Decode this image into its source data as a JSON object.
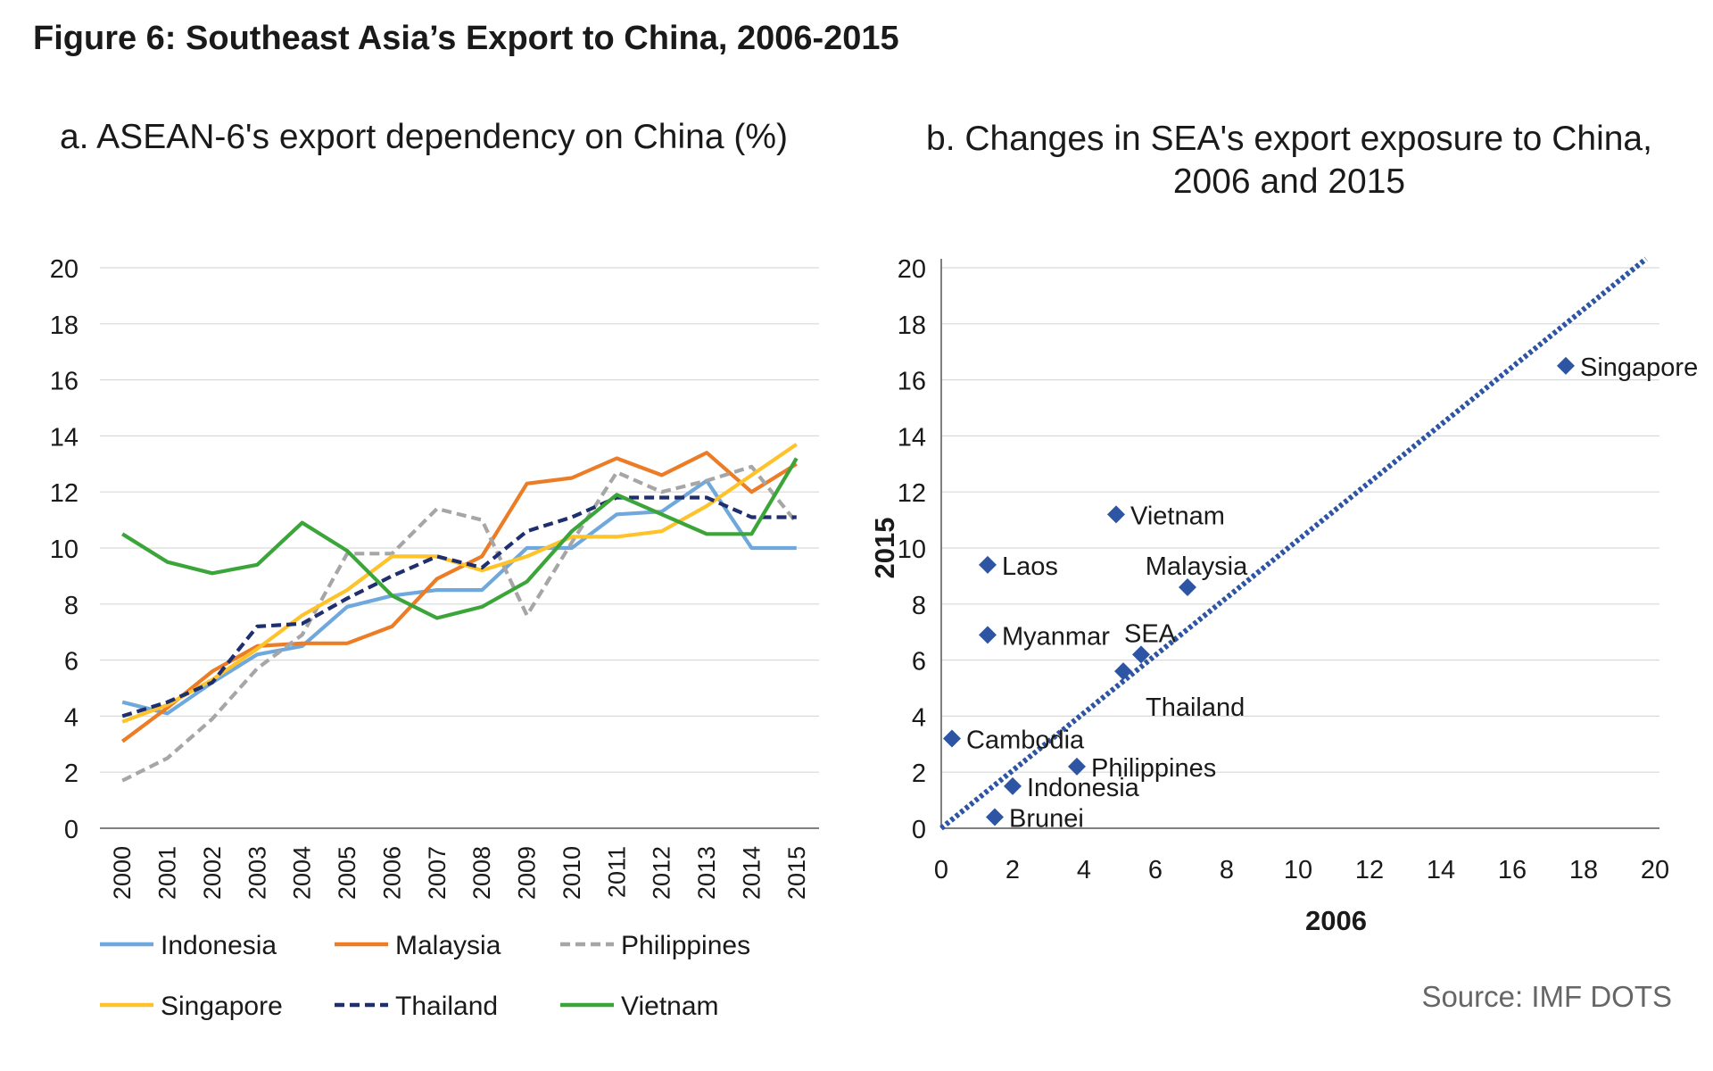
{
  "figure_title": "Figure 6: Southeast Asia’s Export to China, 2006-2015",
  "source": "Source: IMF DOTS",
  "colors": {
    "Indonesia": "#6fa8dc",
    "Malaysia": "#ec7c25",
    "Philippines": "#a6a6a6",
    "Singapore": "#fec22b",
    "Thailand": "#1f2f6e",
    "Vietnam": "#3ba53a",
    "scatter_marker": "#2e55a3",
    "diagonal_line": "#2e55a3",
    "gridline": "#d9d9d9"
  },
  "chart_data": [
    {
      "type": "line",
      "title": "a. ASEAN-6's export dependency on China (%)",
      "xlabel": "",
      "ylabel": "",
      "ylim": [
        0,
        20
      ],
      "yticks": [
        0,
        2,
        4,
        6,
        8,
        10,
        12,
        14,
        16,
        18,
        20
      ],
      "grid": true,
      "legend_position": "bottom",
      "x": [
        2000,
        2001,
        2002,
        2003,
        2004,
        2005,
        2006,
        2007,
        2008,
        2009,
        2010,
        2011,
        2012,
        2013,
        2014,
        2015
      ],
      "series": [
        {
          "name": "Indonesia",
          "style": "solid",
          "values": [
            4.5,
            4.1,
            5.2,
            6.2,
            6.5,
            7.9,
            8.3,
            8.5,
            8.5,
            10.0,
            10.0,
            11.2,
            11.3,
            12.4,
            10.0,
            10.0
          ]
        },
        {
          "name": "Malaysia",
          "style": "solid",
          "values": [
            3.1,
            4.3,
            5.6,
            6.5,
            6.6,
            6.6,
            7.2,
            8.9,
            9.7,
            12.3,
            12.5,
            13.2,
            12.6,
            13.4,
            12.0,
            13.0
          ]
        },
        {
          "name": "Philippines",
          "style": "dashed",
          "values": [
            1.7,
            2.5,
            3.9,
            5.7,
            6.9,
            9.8,
            9.8,
            11.4,
            11.0,
            7.6,
            10.2,
            12.7,
            12.0,
            12.4,
            12.9,
            10.9
          ]
        },
        {
          "name": "Singapore",
          "style": "solid",
          "values": [
            3.8,
            4.4,
            5.3,
            6.4,
            7.6,
            8.5,
            9.7,
            9.7,
            9.2,
            9.7,
            10.4,
            10.4,
            10.6,
            11.5,
            12.6,
            13.7
          ]
        },
        {
          "name": "Thailand",
          "style": "dashed",
          "values": [
            4.0,
            4.5,
            5.2,
            7.2,
            7.3,
            8.2,
            9.0,
            9.7,
            9.3,
            10.6,
            11.1,
            11.8,
            11.8,
            11.8,
            11.1,
            11.1
          ]
        },
        {
          "name": "Vietnam",
          "style": "solid",
          "values": [
            10.5,
            9.5,
            9.1,
            9.4,
            10.9,
            9.9,
            8.3,
            7.5,
            7.9,
            8.8,
            10.6,
            11.9,
            11.2,
            10.5,
            10.5,
            13.2
          ]
        }
      ]
    },
    {
      "type": "scatter",
      "title": "b. Changes in SEA's export exposure to China,",
      "title_line2": "2006 and 2015",
      "xlabel": "2006",
      "ylabel": "2015",
      "xlim": [
        0,
        20
      ],
      "ylim": [
        0,
        20
      ],
      "xticks": [
        0,
        2,
        4,
        6,
        8,
        10,
        12,
        14,
        16,
        18,
        20
      ],
      "yticks": [
        0,
        2,
        4,
        6,
        8,
        10,
        12,
        14,
        16,
        18,
        20
      ],
      "grid": true,
      "reference_line": {
        "style": "dotted",
        "from": [
          0,
          0
        ],
        "to": [
          20,
          20
        ]
      },
      "points": [
        {
          "label": "Singapore",
          "x": 17.5,
          "y": 16.5,
          "label_pos": "right"
        },
        {
          "label": "Vietnam",
          "x": 4.9,
          "y": 11.2,
          "label_pos": "right"
        },
        {
          "label": "Laos",
          "x": 1.3,
          "y": 9.4,
          "label_pos": "right"
        },
        {
          "label": "Malaysia",
          "x": 6.9,
          "y": 8.6,
          "label_pos": "above"
        },
        {
          "label": "Myanmar",
          "x": 1.3,
          "y": 6.9,
          "label_pos": "right"
        },
        {
          "label": "SEA",
          "x": 5.6,
          "y": 6.2,
          "label_pos": "above"
        },
        {
          "label": "Thailand",
          "x": 5.1,
          "y": 5.6,
          "label_pos": "below-right"
        },
        {
          "label": "Cambodia",
          "x": 0.3,
          "y": 3.2,
          "label_pos": "right"
        },
        {
          "label": "Philippines",
          "x": 3.8,
          "y": 2.2,
          "label_pos": "right"
        },
        {
          "label": "Indonesia",
          "x": 2.0,
          "y": 1.5,
          "label_pos": "right"
        },
        {
          "label": "Brunei",
          "x": 1.5,
          "y": 0.4,
          "label_pos": "right"
        }
      ]
    }
  ]
}
